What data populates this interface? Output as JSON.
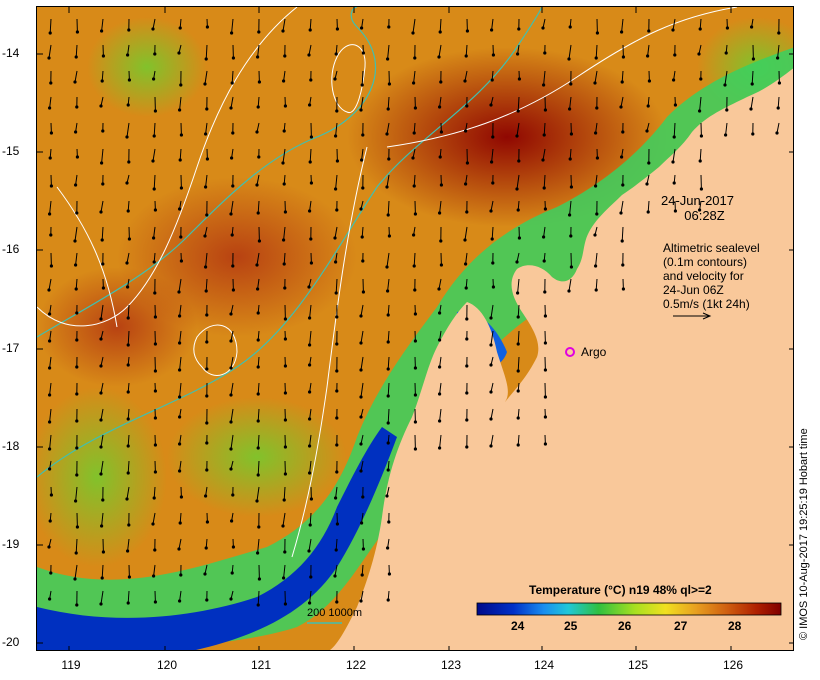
{
  "map": {
    "lat_labels": [
      "-14",
      "-15",
      "-16",
      "-17",
      "-18",
      "-19",
      "-20"
    ],
    "lon_labels": [
      "119",
      "120",
      "121",
      "122",
      "123",
      "124",
      "125",
      "126"
    ],
    "date_line1": "24-Jun-2017",
    "date_line2": "06:28Z",
    "altimetry_lines": [
      "Altimetric sealevel",
      "(0.1m contours)",
      "and velocity for",
      "24-Jun 06Z",
      "0.5m/s (1kt 24h)"
    ],
    "argo_label": "Argo",
    "depth_label": "200  1000m",
    "colorbar_title": "Temperature (°C) n19 48% ql>=2",
    "colorbar_ticks": [
      "24",
      "25",
      "26",
      "27",
      "28"
    ],
    "credit": "© IMOS 10-Aug-2017 19:25:19 Hobart time",
    "colors": {
      "land": "#f9c89a",
      "contour": "#ffffff",
      "isobath": "#40c0b0",
      "argo": "#e000e0",
      "warm": "#a00000",
      "cool": "#001080"
    }
  }
}
